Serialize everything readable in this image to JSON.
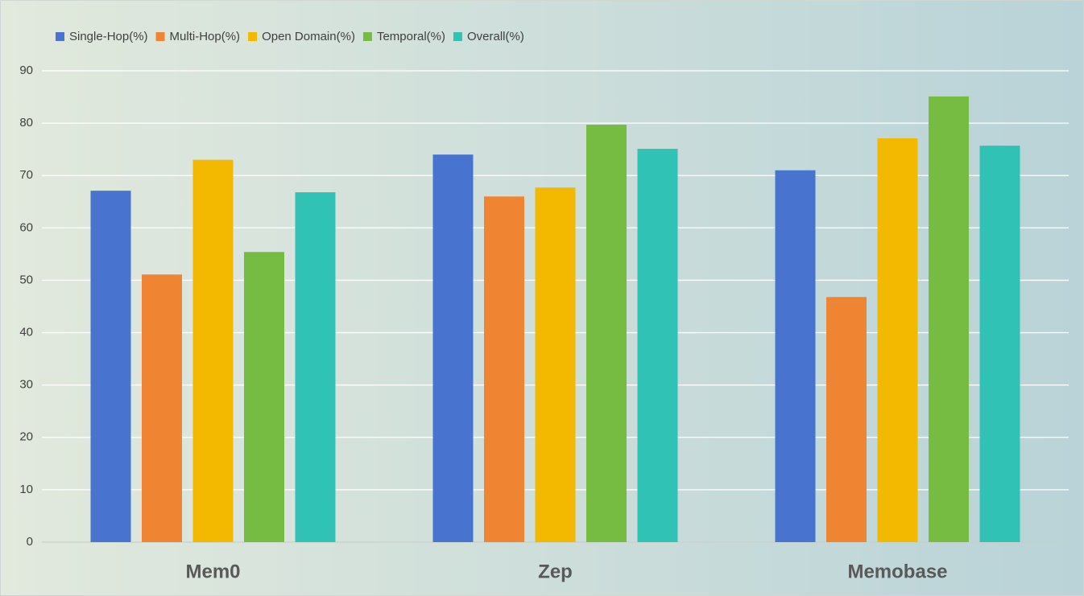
{
  "chart_data": {
    "type": "bar",
    "categories": [
      "Mem0",
      "Zep",
      "Memobase"
    ],
    "series": [
      {
        "name": "Single-Hop(%)",
        "color": "#4874cf",
        "values": [
          67.1,
          74.0,
          71.0
        ]
      },
      {
        "name": "Multi-Hop(%)",
        "color": "#ef8533",
        "values": [
          51.1,
          66.0,
          46.8
        ]
      },
      {
        "name": "Open Domain(%)",
        "color": "#f2b900",
        "values": [
          73.0,
          67.7,
          77.1
        ]
      },
      {
        "name": "Temporal(%)",
        "color": "#76bc43",
        "values": [
          55.4,
          79.7,
          85.1
        ]
      },
      {
        "name": "Overall(%)",
        "color": "#30c3b5",
        "values": [
          66.8,
          75.1,
          75.7
        ]
      }
    ],
    "ylim": [
      0,
      90
    ],
    "yticks": [
      0,
      10,
      20,
      30,
      40,
      50,
      60,
      70,
      80,
      90
    ],
    "grid": true,
    "legend": "top-left"
  }
}
